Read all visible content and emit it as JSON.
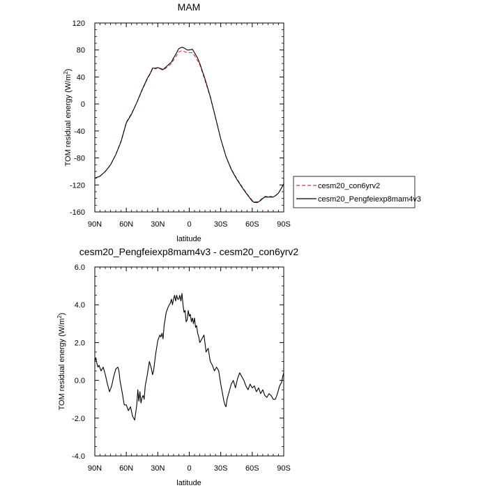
{
  "chart_data": [
    {
      "type": "line",
      "title": "MAM",
      "xlabel": "latitude",
      "ylabel": "TOM residual energy",
      "yunit_base": "W/m",
      "yunit_sup": "2",
      "xlim": [
        90,
        -90
      ],
      "ylim": [
        -160,
        120
      ],
      "xticks": [
        {
          "value": 90,
          "label": "90N"
        },
        {
          "value": 60,
          "label": "60N"
        },
        {
          "value": 30,
          "label": "30N"
        },
        {
          "value": 0,
          "label": "0"
        },
        {
          "value": -30,
          "label": "30S"
        },
        {
          "value": -60,
          "label": "60S"
        },
        {
          "value": -90,
          "label": "90S"
        }
      ],
      "yticks": [
        {
          "value": 120,
          "label": "120"
        },
        {
          "value": 80,
          "label": "80"
        },
        {
          "value": 40,
          "label": "40"
        },
        {
          "value": 0,
          "label": "0"
        },
        {
          "value": -40,
          "label": "-40"
        },
        {
          "value": -80,
          "label": "-80"
        },
        {
          "value": -120,
          "label": "-120"
        },
        {
          "value": -160,
          "label": "-160"
        }
      ],
      "legend": {
        "placement": "right",
        "entries": [
          "cesm20_con6yrv2",
          "cesm20_Pengfeiexp8mam4v3"
        ]
      },
      "series": [
        {
          "name": "cesm20_con6yrv2",
          "color": "#e03030",
          "dash": true,
          "x": [
            90,
            85,
            80,
            75,
            70,
            65,
            60,
            55,
            50,
            45,
            40,
            37,
            35,
            32,
            30,
            25,
            20,
            17,
            15,
            12,
            10,
            7,
            5,
            2,
            0,
            -3,
            -5,
            -8,
            -10,
            -15,
            -20,
            -25,
            -30,
            -35,
            -40,
            -45,
            -50,
            -55,
            -60,
            -62,
            -65,
            -68,
            -70,
            -72,
            -75,
            -78,
            -80,
            -82,
            -85,
            -88,
            -90
          ],
          "y": [
            -110,
            -107,
            -100,
            -90,
            -75,
            -55,
            -27,
            -14,
            2,
            20,
            37,
            45,
            52,
            52,
            54,
            50,
            56,
            60,
            65,
            72,
            77,
            79,
            78,
            76,
            76,
            76,
            72,
            64,
            58,
            35,
            10,
            -20,
            -52,
            -78,
            -96,
            -110,
            -122,
            -133,
            -143,
            -145,
            -145,
            -142,
            -139,
            -137,
            -137,
            -137,
            -138,
            -136,
            -132,
            -124,
            -119
          ]
        },
        {
          "name": "cesm20_Pengfeiexp8mam4v3",
          "color": "#000000",
          "dash": false,
          "x": [
            90,
            85,
            80,
            75,
            70,
            65,
            60,
            55,
            50,
            45,
            40,
            37,
            35,
            32,
            30,
            25,
            20,
            17,
            15,
            12,
            10,
            7,
            5,
            2,
            0,
            -3,
            -5,
            -8,
            -10,
            -15,
            -20,
            -25,
            -30,
            -35,
            -40,
            -45,
            -50,
            -55,
            -60,
            -62,
            -65,
            -68,
            -70,
            -72,
            -75,
            -78,
            -80,
            -82,
            -85,
            -88,
            -90
          ],
          "y": [
            -110,
            -107,
            -100,
            -90,
            -75,
            -56,
            -28,
            -15,
            2,
            21,
            38,
            46,
            53,
            53,
            54,
            51,
            58,
            62,
            68,
            76,
            82,
            84,
            83,
            80,
            80,
            81,
            76,
            68,
            60,
            37,
            11,
            -20,
            -52,
            -78,
            -97,
            -111,
            -123,
            -134,
            -144,
            -146,
            -146,
            -143,
            -140,
            -138,
            -138,
            -138,
            -138,
            -136,
            -132,
            -124,
            -118
          ]
        }
      ]
    },
    {
      "type": "line",
      "title": "cesm20_Pengfeiexp8mam4v3 - cesm20_con6yrv2",
      "xlabel": "latitude",
      "ylabel": "TOM residual energy",
      "yunit_base": "W/m",
      "yunit_sup": "2",
      "xlim": [
        90,
        -90
      ],
      "ylim": [
        -4.0,
        6.0
      ],
      "xticks": [
        {
          "value": 90,
          "label": "90N"
        },
        {
          "value": 60,
          "label": "60N"
        },
        {
          "value": 30,
          "label": "30N"
        },
        {
          "value": 0,
          "label": "0"
        },
        {
          "value": -30,
          "label": "30S"
        },
        {
          "value": -60,
          "label": "60S"
        },
        {
          "value": -90,
          "label": "90S"
        }
      ],
      "yticks": [
        {
          "value": 6.0,
          "label": "6.0"
        },
        {
          "value": 4.0,
          "label": "4.0"
        },
        {
          "value": 2.0,
          "label": "2.0"
        },
        {
          "value": 0.0,
          "label": "0.0"
        },
        {
          "value": -2.0,
          "label": "-2.0"
        },
        {
          "value": -4.0,
          "label": "-4.0"
        }
      ],
      "series": [
        {
          "name": "cesm20_Pengfeiexp8mam4v3 - cesm20_con6yrv2",
          "color": "#000000",
          "dash": false,
          "x": [
            90,
            89,
            88,
            87,
            86,
            84,
            82,
            80,
            78,
            76,
            74,
            72,
            70,
            68,
            67,
            66,
            64,
            62,
            60,
            58,
            56,
            54,
            52,
            50,
            49,
            48,
            47,
            46,
            45,
            44,
            43,
            42,
            40,
            38,
            36,
            35,
            34,
            32,
            30,
            28,
            27,
            26,
            25,
            24,
            22,
            20,
            18,
            17,
            16,
            15,
            14,
            13,
            12,
            11,
            10,
            9,
            8,
            7,
            6,
            5,
            4,
            3,
            2,
            1,
            0,
            -1,
            -2,
            -3,
            -4,
            -5,
            -6,
            -7,
            -8,
            -9,
            -10,
            -12,
            -14,
            -16,
            -18,
            -20,
            -22,
            -24,
            -26,
            -28,
            -30,
            -32,
            -33,
            -34,
            -35,
            -36,
            -38,
            -40,
            -42,
            -44,
            -46,
            -48,
            -50,
            -52,
            -54,
            -56,
            -58,
            -60,
            -62,
            -64,
            -66,
            -68,
            -70,
            -72,
            -74,
            -76,
            -78,
            -80,
            -82,
            -84,
            -85,
            -86,
            -87,
            -88,
            -89,
            -90
          ],
          "y": [
            1.0,
            1.2,
            0.9,
            0.7,
            0.8,
            0.5,
            0.7,
            0.3,
            -0.2,
            -0.6,
            -0.3,
            0.2,
            0.6,
            0.7,
            0.5,
            0.0,
            -0.6,
            -1.3,
            -1.3,
            -1.6,
            -1.4,
            -1.9,
            -2.1,
            -1.3,
            -0.5,
            -1.1,
            -0.6,
            -1.2,
            -0.9,
            -0.8,
            -1.0,
            -0.3,
            0.3,
            1.0,
            0.6,
            0.3,
            0.5,
            1.4,
            2.1,
            2.4,
            2.3,
            2.5,
            2.2,
            2.9,
            3.6,
            3.9,
            4.1,
            4.3,
            4.0,
            4.3,
            4.5,
            4.2,
            4.5,
            4.3,
            4.3,
            4.5,
            4.2,
            4.6,
            4.0,
            3.6,
            3.7,
            3.1,
            3.2,
            3.7,
            3.4,
            3.5,
            3.1,
            3.3,
            3.0,
            3.3,
            2.8,
            2.9,
            2.5,
            2.3,
            2.0,
            2.2,
            2.4,
            1.5,
            1.7,
            1.0,
            0.8,
            0.5,
            0.7,
            0.5,
            -0.2,
            -0.8,
            -1.1,
            -1.3,
            -1.4,
            -1.0,
            -0.6,
            -0.2,
            0.0,
            -0.4,
            0.1,
            0.4,
            0.2,
            0.0,
            -0.3,
            -0.5,
            -0.2,
            -0.4,
            -0.3,
            -0.6,
            -0.4,
            -0.7,
            -0.5,
            -0.8,
            -0.9,
            -0.7,
            -0.8,
            -1.0,
            -1.0,
            -0.7,
            -0.5,
            -0.3,
            -0.2,
            -0.1,
            0.2,
            0.4
          ]
        }
      ]
    }
  ]
}
